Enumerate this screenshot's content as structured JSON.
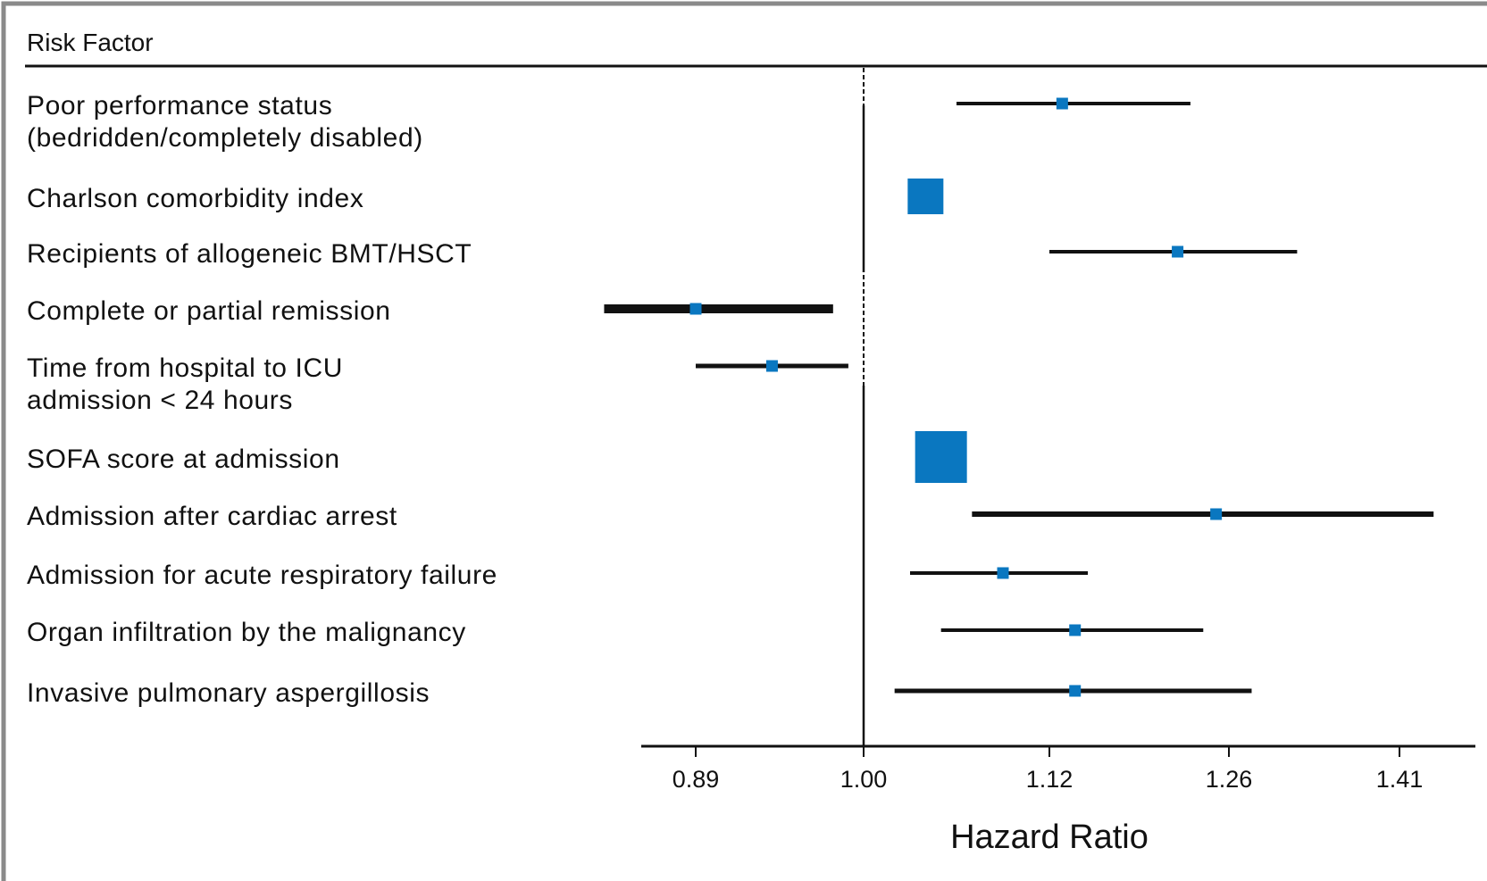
{
  "chart_data": {
    "type": "forest",
    "column_header": "Risk Factor",
    "xlabel": "Hazard Ratio",
    "reference_line": 1.0,
    "x_ticks": [
      "0.89",
      "1.00",
      "1.12",
      "1.26",
      "1.41"
    ],
    "rows": [
      {
        "label": [
          "Poor performance status",
          "(bedridden/completely disabled)"
        ],
        "estimate": 1.13,
        "ci_low": 1.06,
        "ci_high": 1.23
      },
      {
        "label": [
          "Charlson comorbidity index"
        ],
        "estimate": 1.04,
        "ci_low": 1.04,
        "ci_high": 1.04
      },
      {
        "label": [
          "Recipients of allogeneic BMT/HSCT"
        ],
        "estimate": 1.22,
        "ci_low": 1.12,
        "ci_high": 1.32
      },
      {
        "label": [
          "Complete or partial remission"
        ],
        "estimate": 0.89,
        "ci_low": 0.83,
        "ci_high": 0.98
      },
      {
        "label": [
          "Time from hospital to ICU",
          "admission < 24 hours"
        ],
        "estimate": 0.94,
        "ci_low": 0.89,
        "ci_high": 0.99
      },
      {
        "label": [
          "SOFA score at admission"
        ],
        "estimate": 1.05,
        "ci_low": 1.05,
        "ci_high": 1.05
      },
      {
        "label": [
          "Admission after cardiac arrest"
        ],
        "estimate": 1.25,
        "ci_low": 1.07,
        "ci_high": 1.44
      },
      {
        "label": [
          "Admission for acute respiratory failure"
        ],
        "estimate": 1.09,
        "ci_low": 1.03,
        "ci_high": 1.15
      },
      {
        "label": [
          "Organ infiltration by the malignancy"
        ],
        "estimate": 1.14,
        "ci_low": 1.05,
        "ci_high": 1.24
      },
      {
        "label": [
          "Invasive pulmonary aspergillosis"
        ],
        "estimate": 1.14,
        "ci_low": 1.02,
        "ci_high": 1.28
      }
    ]
  }
}
